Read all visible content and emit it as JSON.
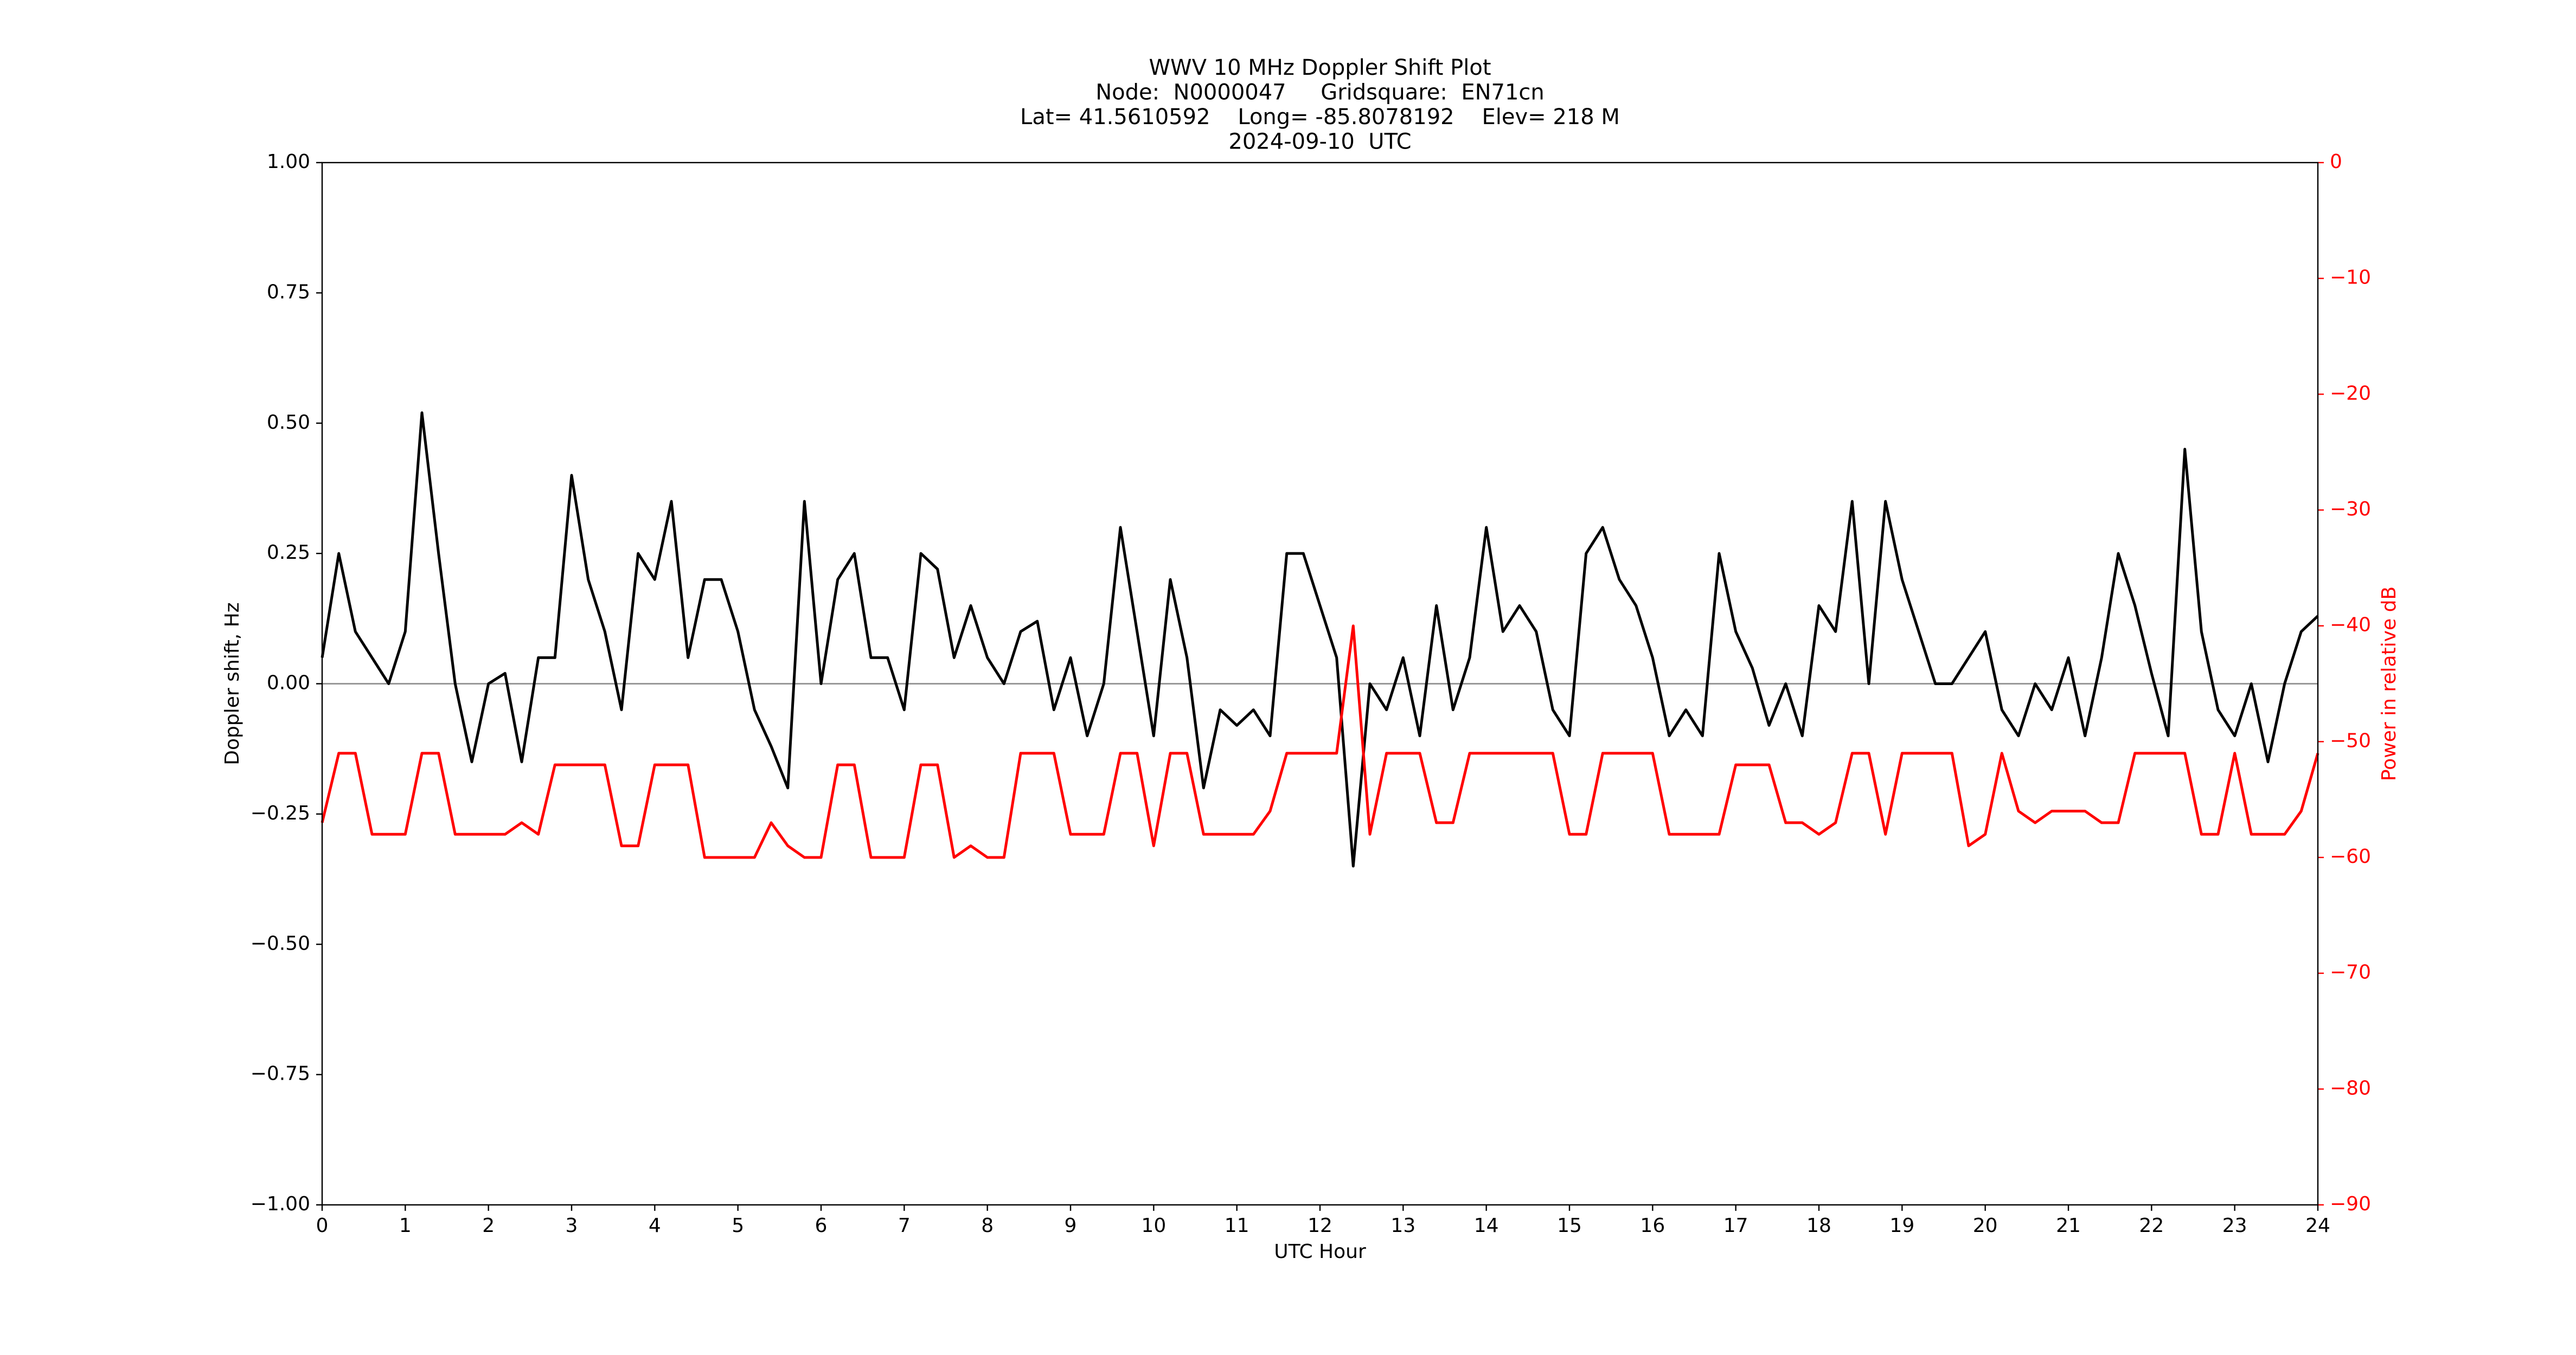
{
  "chart_data": {
    "type": "line",
    "title_lines": [
      "WWV 10 MHz Doppler Shift Plot",
      "Node:  N0000047     Gridsquare:  EN71cn",
      "Lat= 41.5610592    Long= -85.8078192    Elev= 218 M",
      "2024-09-10  UTC"
    ],
    "xlabel": "UTC Hour",
    "ylabel": "Doppler shift, Hz",
    "y2label": "Power in relative dB",
    "y2color": "#ff0000",
    "xlim": [
      0,
      24
    ],
    "xticks": [
      0,
      1,
      2,
      3,
      4,
      5,
      6,
      7,
      8,
      9,
      10,
      11,
      12,
      13,
      14,
      15,
      16,
      17,
      18,
      19,
      20,
      21,
      22,
      23,
      24
    ],
    "ylim": [
      -1,
      1
    ],
    "yticks": [
      {
        "value": -1,
        "label": "−1.00"
      },
      {
        "value": -0.75,
        "label": "−0.75"
      },
      {
        "value": -0.5,
        "label": "−0.50"
      },
      {
        "value": -0.25,
        "label": "−0.25"
      },
      {
        "value": 0,
        "label": "0.00"
      },
      {
        "value": 0.25,
        "label": "0.25"
      },
      {
        "value": 0.5,
        "label": "0.50"
      },
      {
        "value": 0.75,
        "label": "0.75"
      },
      {
        "value": 1,
        "label": "1.00"
      }
    ],
    "y2lim": [
      -90,
      0
    ],
    "y2ticks": [
      {
        "value": -90,
        "label": "−90"
      },
      {
        "value": -80,
        "label": "−80"
      },
      {
        "value": -70,
        "label": "−70"
      },
      {
        "value": -60,
        "label": "−60"
      },
      {
        "value": -50,
        "label": "−50"
      },
      {
        "value": -40,
        "label": "−40"
      },
      {
        "value": -30,
        "label": "−30"
      },
      {
        "value": -20,
        "label": "−20"
      },
      {
        "value": -10,
        "label": "−10"
      },
      0
    ],
    "hline": 0,
    "hline_color": "#999999",
    "x": [
      0,
      0.2,
      0.4,
      0.6,
      0.8,
      1,
      1.2,
      1.4,
      1.6,
      1.8,
      2,
      2.2,
      2.4,
      2.6,
      2.8,
      3,
      3.2,
      3.4,
      3.6,
      3.8,
      4,
      4.2,
      4.4,
      4.6,
      4.8,
      5,
      5.2,
      5.4,
      5.6,
      5.8,
      6,
      6.2,
      6.4,
      6.6,
      6.8,
      7,
      7.2,
      7.4,
      7.6,
      7.8,
      8,
      8.2,
      8.4,
      8.6,
      8.8,
      9,
      9.2,
      9.4,
      9.6,
      9.8,
      10,
      10.2,
      10.4,
      10.6,
      10.8,
      11,
      11.2,
      11.4,
      11.6,
      11.8,
      12,
      12.2,
      12.4,
      12.6,
      12.8,
      13,
      13.2,
      13.4,
      13.6,
      13.8,
      14,
      14.2,
      14.4,
      14.6,
      14.8,
      15,
      15.2,
      15.4,
      15.6,
      15.8,
      16,
      16.2,
      16.4,
      16.6,
      16.8,
      17,
      17.2,
      17.4,
      17.6,
      17.8,
      18,
      18.2,
      18.4,
      18.6,
      18.8,
      19,
      19.2,
      19.4,
      19.6,
      19.8,
      20,
      20.2,
      20.4,
      20.6,
      20.8,
      21,
      21.2,
      21.4,
      21.6,
      21.8,
      22,
      22.2,
      22.4,
      22.6,
      22.8,
      23,
      23.2,
      23.4,
      23.6,
      23.8,
      24
    ],
    "series": [
      {
        "color": "#000000",
        "values": [
          0.05,
          0.25,
          0.1,
          0.05,
          0,
          0.1,
          0.52,
          0.25,
          0,
          -0.15,
          0,
          0.02,
          -0.15,
          0.05,
          0.05,
          0.4,
          0.2,
          0.1,
          -0.05,
          0.25,
          0.2,
          0.35,
          0.05,
          0.2,
          0.2,
          0.1,
          -0.05,
          -0.12,
          -0.2,
          0.35,
          0,
          0.2,
          0.25,
          0.05,
          0.05,
          -0.05,
          0.25,
          0.22,
          0.05,
          0.15,
          0.05,
          0,
          0.1,
          0.12,
          -0.05,
          0.05,
          -0.1,
          0,
          0.3,
          0.1,
          -0.1,
          0.2,
          0.05,
          -0.2,
          -0.05,
          -0.08,
          -0.05,
          -0.1,
          0.25,
          0.25,
          0.15,
          0.05,
          -0.35,
          0,
          -0.05,
          0.05,
          -0.1,
          0.15,
          -0.05,
          0.05,
          0.3,
          0.1,
          0.15,
          0.1,
          -0.05,
          -0.1,
          0.25,
          0.3,
          0.2,
          0.15,
          0.05,
          -0.1,
          -0.05,
          -0.1,
          0.25,
          0.1,
          0.03,
          -0.08,
          0,
          -0.1,
          0.15,
          0.1,
          0.35,
          0,
          0.35,
          0.2,
          0.1,
          0,
          0,
          0.05,
          0.1,
          -0.05,
          -0.1,
          0,
          -0.05,
          0.05,
          -0.1,
          0.05,
          0.25,
          0.15,
          0.02,
          -0.1,
          0.45,
          0.1,
          -0.05,
          -0.1,
          0,
          -0.15,
          0,
          0.1,
          0.13
        ]
      },
      {
        "color": "#ff0000",
        "axis": "y2",
        "values": [
          -57,
          -51,
          -51,
          -58,
          -58,
          -58,
          -51,
          -51,
          -58,
          -58,
          -58,
          -58,
          -57,
          -58,
          -52,
          -52,
          -52,
          -52,
          -59,
          -59,
          -52,
          -52,
          -52,
          -60,
          -60,
          -60,
          -60,
          -57,
          -59,
          -60,
          -60,
          -52,
          -52,
          -60,
          -60,
          -60,
          -52,
          -52,
          -60,
          -59,
          -60,
          -60,
          -51,
          -51,
          -51,
          -58,
          -58,
          -58,
          -51,
          -51,
          -59,
          -51,
          -51,
          -58,
          -58,
          -58,
          -58,
          -56,
          -51,
          -51,
          -51,
          -51,
          -40,
          -58,
          -51,
          -51,
          -51,
          -57,
          -57,
          -51,
          -51,
          -51,
          -51,
          -51,
          -51,
          -58,
          -58,
          -51,
          -51,
          -51,
          -51,
          -58,
          -58,
          -58,
          -58,
          -52,
          -52,
          -52,
          -57,
          -57,
          -58,
          -57,
          -51,
          -51,
          -58,
          -51,
          -51,
          -51,
          -51,
          -59,
          -58,
          -51,
          -56,
          -57,
          -56,
          -56,
          -56,
          -57,
          -57,
          -51,
          -51,
          -51,
          -51,
          -58,
          -58,
          -51,
          -58,
          -58,
          -58,
          -56,
          -51
        ]
      }
    ]
  }
}
